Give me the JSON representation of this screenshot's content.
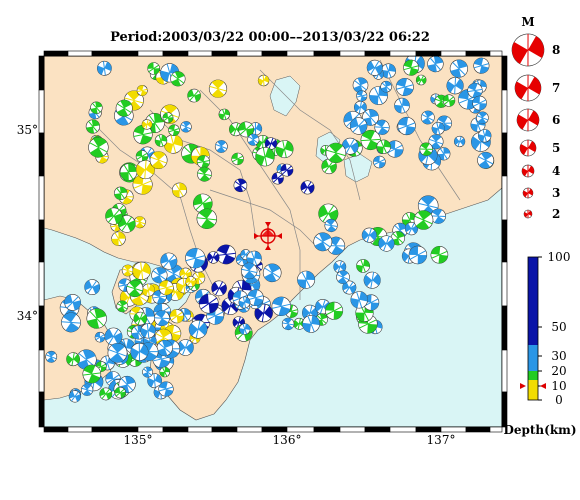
{
  "title": "Period:2003/03/22 00:00––2013/03/22 06:22",
  "map": {
    "lon_labels": [
      "135°",
      "136°",
      "137°"
    ],
    "lat_labels": [
      "35°",
      "34°"
    ],
    "sea_color": "#d9f5f5",
    "land_color": "#fbe2c2",
    "mainshock": {
      "lon": 135.88,
      "lat": 34.43
    }
  },
  "magnitude_legend": {
    "title": "M",
    "entries": [
      "8",
      "7",
      "6",
      "5",
      "4",
      "3",
      "2"
    ]
  },
  "depth_legend": {
    "title": "Depth(km)",
    "ticks": [
      "100",
      "50",
      "30",
      "20",
      "10",
      "0"
    ],
    "colors": {
      "deep": "#0a14a8",
      "mid": "#2a96e6",
      "shallow": "#22cc22",
      "surface": "#f2dc00"
    }
  }
}
